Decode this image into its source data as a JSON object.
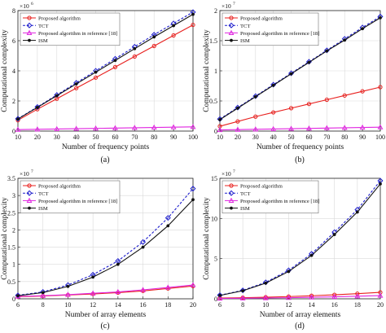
{
  "legend_labels": {
    "proposed": "Proposed algorithm",
    "tct": "TCT",
    "ref18": "Proposed algorithm in reference [18]",
    "ism": "ISM"
  },
  "chart_data": [
    {
      "type": "line",
      "caption": "(a)",
      "xlabel": "Number of frequency points",
      "ylabel": "Computational complexity",
      "exponent": "6",
      "x": [
        10,
        20,
        30,
        40,
        50,
        60,
        70,
        80,
        90,
        100
      ],
      "xlim": [
        10,
        100
      ],
      "ylim": [
        0,
        8
      ],
      "xticks": [
        "10",
        "20",
        "30",
        "40",
        "50",
        "60",
        "70",
        "80",
        "90",
        "100"
      ],
      "yticks": [
        "0",
        "2",
        "4",
        "6",
        "8"
      ],
      "grid": true,
      "legend": "top-left",
      "series": [
        {
          "name": "Proposed algorithm",
          "key": "proposed",
          "color": "#e8201e",
          "marker": "circle",
          "dash": "solid",
          "values": [
            0.72,
            1.45,
            2.15,
            2.85,
            3.55,
            4.25,
            4.95,
            5.65,
            6.35,
            7.05
          ]
        },
        {
          "name": "TCT",
          "key": "tct",
          "color": "#1c1ccc",
          "marker": "diamond",
          "dash": "dashed",
          "values": [
            0.82,
            1.6,
            2.4,
            3.2,
            4.0,
            4.8,
            5.6,
            6.4,
            7.15,
            7.9
          ]
        },
        {
          "name": "Proposed algorithm in reference [18]",
          "key": "ref18",
          "color": "#e026e0",
          "marker": "triangle",
          "dash": "solid",
          "values": [
            0.1,
            0.12,
            0.14,
            0.16,
            0.18,
            0.2,
            0.22,
            0.24,
            0.26,
            0.28
          ]
        },
        {
          "name": "ISM",
          "key": "ism",
          "color": "#111111",
          "marker": "dot",
          "dash": "solid",
          "values": [
            0.8,
            1.57,
            2.35,
            3.13,
            3.91,
            4.69,
            5.47,
            6.25,
            7.0,
            7.75
          ]
        }
      ]
    },
    {
      "type": "line",
      "caption": "(b)",
      "xlabel": "Number of frequency points",
      "ylabel": "Computational complexity",
      "exponent": "7",
      "x": [
        10,
        20,
        30,
        40,
        50,
        60,
        70,
        80,
        90,
        100
      ],
      "xlim": [
        10,
        100
      ],
      "ylim": [
        0,
        2
      ],
      "xticks": [
        "10",
        "20",
        "30",
        "40",
        "50",
        "60",
        "70",
        "80",
        "90",
        "100"
      ],
      "yticks": [
        "0",
        "0.5",
        "1",
        "1.5",
        "2"
      ],
      "grid": true,
      "legend": "top-left",
      "series": [
        {
          "name": "Proposed algorithm",
          "key": "proposed",
          "color": "#e8201e",
          "marker": "circle",
          "dash": "solid",
          "values": [
            0.08,
            0.16,
            0.24,
            0.31,
            0.38,
            0.45,
            0.52,
            0.59,
            0.66,
            0.73
          ]
        },
        {
          "name": "TCT",
          "key": "tct",
          "color": "#1c1ccc",
          "marker": "diamond",
          "dash": "dashed",
          "values": [
            0.2,
            0.39,
            0.58,
            0.77,
            0.96,
            1.15,
            1.34,
            1.53,
            1.72,
            1.9
          ]
        },
        {
          "name": "Proposed algorithm in reference [18]",
          "key": "ref18",
          "color": "#e026e0",
          "marker": "triangle",
          "dash": "solid",
          "values": [
            0.02,
            0.025,
            0.03,
            0.035,
            0.04,
            0.045,
            0.05,
            0.055,
            0.06,
            0.065
          ]
        },
        {
          "name": "ISM",
          "key": "ism",
          "color": "#111111",
          "marker": "dot",
          "dash": "solid",
          "values": [
            0.19,
            0.38,
            0.57,
            0.76,
            0.95,
            1.14,
            1.33,
            1.51,
            1.7,
            1.88
          ]
        }
      ]
    },
    {
      "type": "line",
      "caption": "(c)",
      "xlabel": "Number of array elements",
      "ylabel": "Computational complexity",
      "exponent": "7",
      "x": [
        6,
        8,
        10,
        12,
        14,
        16,
        18,
        20
      ],
      "xlim": [
        6,
        20
      ],
      "ylim": [
        0,
        3.5
      ],
      "xticks": [
        "6",
        "8",
        "10",
        "12",
        "14",
        "16",
        "18",
        "20"
      ],
      "yticks": [
        "0",
        "0.5",
        "1",
        "1.5",
        "2",
        "2.5",
        "3",
        "3.5"
      ],
      "grid": true,
      "legend": "top-left",
      "series": [
        {
          "name": "Proposed algorithm",
          "key": "proposed",
          "color": "#e8201e",
          "marker": "circle",
          "dash": "solid",
          "values": [
            0.06,
            0.08,
            0.11,
            0.14,
            0.18,
            0.23,
            0.3,
            0.37
          ]
        },
        {
          "name": "TCT",
          "key": "tct",
          "color": "#1c1ccc",
          "marker": "diamond",
          "dash": "dashed",
          "values": [
            0.1,
            0.2,
            0.4,
            0.7,
            1.1,
            1.65,
            2.35,
            3.2
          ]
        },
        {
          "name": "Proposed algorithm in reference [18]",
          "key": "ref18",
          "color": "#e026e0",
          "marker": "triangle",
          "dash": "solid",
          "values": [
            0.07,
            0.09,
            0.12,
            0.16,
            0.2,
            0.26,
            0.33,
            0.4
          ]
        },
        {
          "name": "ISM",
          "key": "ism",
          "color": "#111111",
          "marker": "dot",
          "dash": "solid",
          "values": [
            0.09,
            0.18,
            0.36,
            0.63,
            1.0,
            1.5,
            2.12,
            2.88
          ]
        }
      ]
    },
    {
      "type": "line",
      "caption": "(d)",
      "xlabel": "Number of array elements",
      "ylabel": "Computational complexity",
      "exponent": "7",
      "x": [
        6,
        8,
        10,
        12,
        14,
        16,
        18,
        20
      ],
      "xlim": [
        6,
        20
      ],
      "ylim": [
        0,
        15
      ],
      "xticks": [
        "6",
        "8",
        "10",
        "12",
        "14",
        "16",
        "18",
        "20"
      ],
      "yticks": [
        "0",
        "5",
        "10",
        "15"
      ],
      "grid": true,
      "legend": "top-left",
      "series": [
        {
          "name": "Proposed algorithm",
          "key": "proposed",
          "color": "#e8201e",
          "marker": "circle",
          "dash": "solid",
          "values": [
            0.1,
            0.14,
            0.2,
            0.28,
            0.38,
            0.5,
            0.64,
            0.8
          ]
        },
        {
          "name": "TCT",
          "key": "tct",
          "color": "#1c1ccc",
          "marker": "diamond",
          "dash": "dashed",
          "values": [
            0.45,
            1.05,
            2.05,
            3.55,
            5.6,
            8.3,
            11.1,
            14.7
          ]
        },
        {
          "name": "Proposed algorithm in reference [18]",
          "key": "ref18",
          "color": "#e026e0",
          "marker": "triangle",
          "dash": "solid",
          "values": [
            0.05,
            0.07,
            0.1,
            0.14,
            0.19,
            0.25,
            0.32,
            0.4
          ]
        },
        {
          "name": "ISM",
          "key": "ism",
          "color": "#111111",
          "marker": "dot",
          "dash": "solid",
          "values": [
            0.42,
            1.0,
            1.95,
            3.4,
            5.4,
            8.0,
            10.8,
            14.3
          ]
        }
      ]
    }
  ]
}
